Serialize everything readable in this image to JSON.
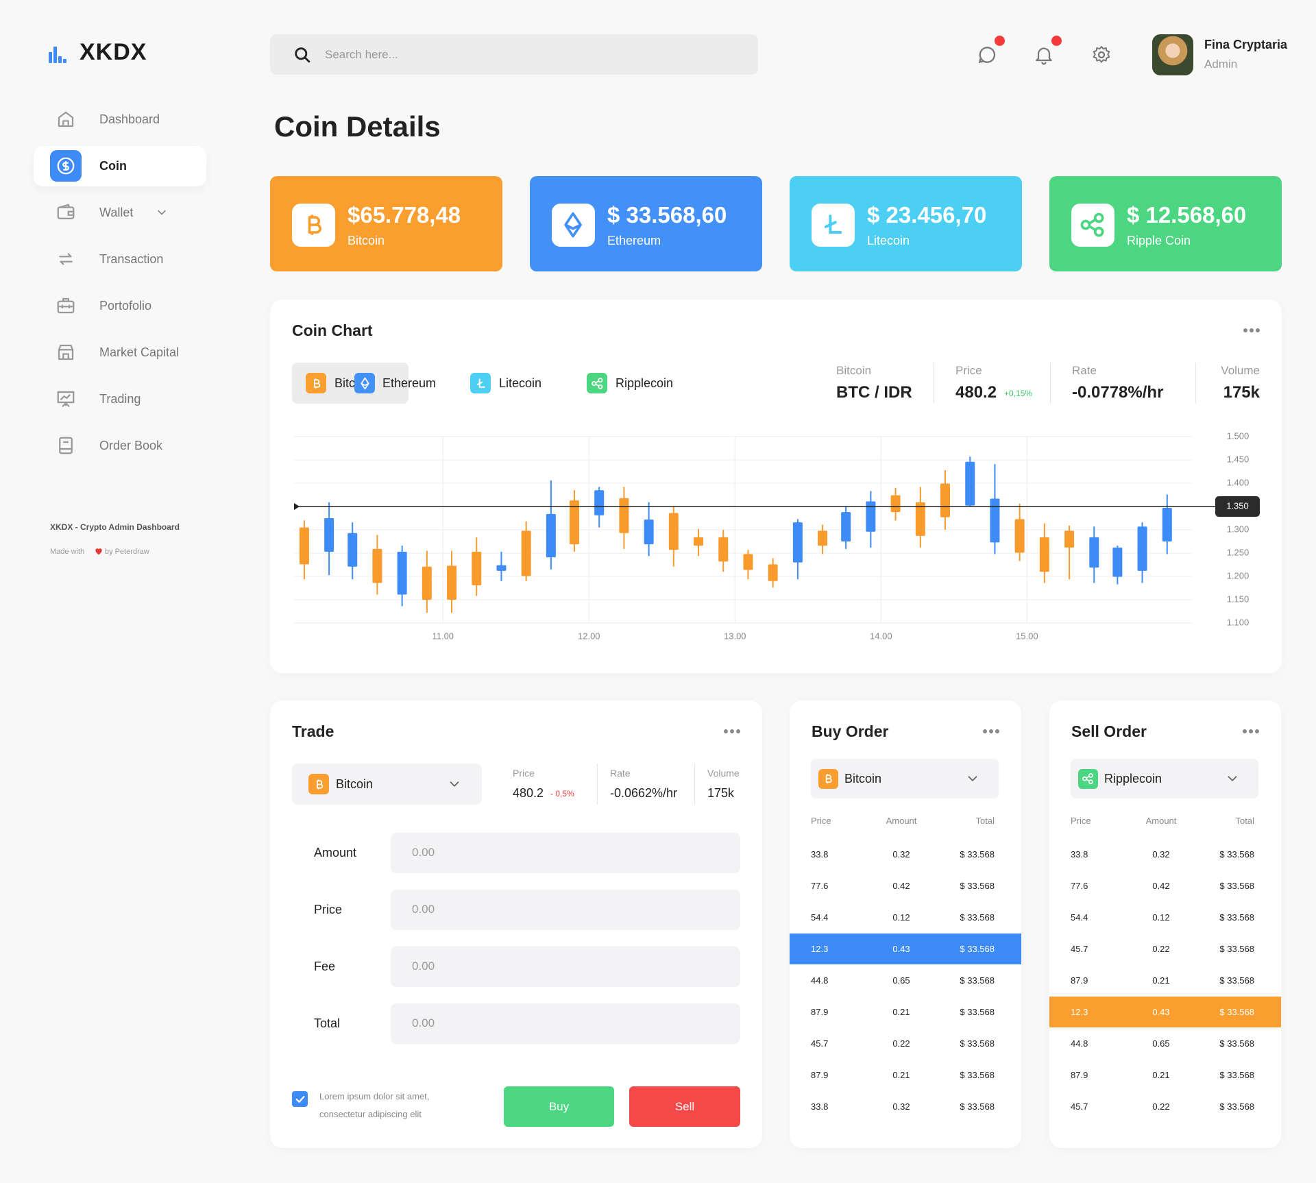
{
  "sidebar": {
    "logo": "XKDX",
    "menu": [
      "Dashboard",
      "Coin",
      "Wallet",
      "Transaction",
      "Portofolio",
      "Market Capital",
      "Trading",
      "Order Book"
    ],
    "active": 1,
    "footer_title": "XKDX - Crypto Admin Dashboard",
    "footer_made": "Made with",
    "footer_by": "by Peterdraw"
  },
  "header": {
    "search_placeholder": "Search here...",
    "user_name": "Fina Cryptaria",
    "user_role": "Admin"
  },
  "page_title": "Coin Details",
  "coin_cards": [
    {
      "price": "$65.778,48",
      "name": "Bitcoin",
      "color": "#f99e2f"
    },
    {
      "price": "$ 33.568,60",
      "name": "Ethereum",
      "color": "#4391f7"
    },
    {
      "price": "$ 23.456,70",
      "name": "Litecoin",
      "color": "#4ccff3"
    },
    {
      "price": "$ 12.568,60",
      "name": "Ripple Coin",
      "color": "#4cd681"
    }
  ],
  "coin_chart": {
    "title": "Coin Chart",
    "tabs": [
      "Bitcoin",
      "Ethereum",
      "Litecoin",
      "Ripplecoin"
    ],
    "active_tab": 0,
    "stats": [
      {
        "label": "Bitcoin",
        "value": "BTC / IDR"
      },
      {
        "label": "Price",
        "value": "480.2",
        "change": "+0,15%"
      },
      {
        "label": "Rate",
        "value": "-0.0778%/hr"
      },
      {
        "label": "Volume",
        "value": "175k"
      }
    ]
  },
  "chart_data": {
    "type": "candlestick",
    "x": [
      10.05,
      10.22,
      10.38,
      10.55,
      10.72,
      10.89,
      11.06,
      11.23,
      11.4,
      11.57,
      11.74,
      11.9,
      12.07,
      12.24,
      12.41,
      12.58,
      12.75,
      12.92,
      13.09,
      13.26,
      13.43,
      13.6,
      13.76,
      13.93,
      14.1,
      14.27,
      14.44,
      14.61,
      14.78,
      14.95,
      15.12,
      15.29,
      15.46,
      15.62,
      15.79,
      15.96
    ],
    "open": [
      1.305,
      1.253,
      1.221,
      1.259,
      1.161,
      1.221,
      1.223,
      1.253,
      1.212,
      1.298,
      1.241,
      1.363,
      1.331,
      1.368,
      1.269,
      1.336,
      1.284,
      1.284,
      1.248,
      1.226,
      1.23,
      1.298,
      1.275,
      1.296,
      1.374,
      1.359,
      1.399,
      1.352,
      1.273,
      1.323,
      1.284,
      1.298,
      1.219,
      1.199,
      1.212,
      1.275
    ],
    "high": [
      1.32,
      1.359,
      1.316,
      1.289,
      1.266,
      1.255,
      1.255,
      1.284,
      1.253,
      1.318,
      1.406,
      1.385,
      1.392,
      1.392,
      1.359,
      1.35,
      1.302,
      1.3,
      1.257,
      1.239,
      1.323,
      1.311,
      1.35,
      1.383,
      1.39,
      1.392,
      1.428,
      1.457,
      1.441,
      1.356,
      1.314,
      1.309,
      1.307,
      1.266,
      1.316,
      1.376
    ],
    "low": [
      1.194,
      1.203,
      1.194,
      1.161,
      1.136,
      1.122,
      1.122,
      1.158,
      1.19,
      1.19,
      1.215,
      1.253,
      1.305,
      1.259,
      1.244,
      1.221,
      1.244,
      1.21,
      1.194,
      1.176,
      1.194,
      1.248,
      1.259,
      1.262,
      1.32,
      1.262,
      1.3,
      1.35,
      1.248,
      1.233,
      1.186,
      1.194,
      1.186,
      1.183,
      1.186,
      1.248
    ],
    "close": [
      1.226,
      1.325,
      1.293,
      1.186,
      1.253,
      1.15,
      1.15,
      1.181,
      1.224,
      1.201,
      1.334,
      1.269,
      1.385,
      1.293,
      1.322,
      1.257,
      1.266,
      1.232,
      1.214,
      1.19,
      1.316,
      1.266,
      1.338,
      1.361,
      1.338,
      1.287,
      1.327,
      1.446,
      1.367,
      1.251,
      1.21,
      1.262,
      1.284,
      1.262,
      1.307,
      1.347
    ],
    "up_color": "#3d8bf7",
    "down_color": "#f89b2c",
    "xlim": [
      9.98,
      16.13
    ],
    "xticks": [
      {
        "value": 11,
        "label": "11.00"
      },
      {
        "value": 12,
        "label": "12.00"
      },
      {
        "value": 13,
        "label": "13.00"
      },
      {
        "value": 14,
        "label": "14.00"
      },
      {
        "value": 15,
        "label": "15.00"
      }
    ],
    "ylim": [
      1.1,
      1.5
    ],
    "yticks": [
      {
        "value": 1.5,
        "label": "1.500"
      },
      {
        "value": 1.45,
        "label": "1.450"
      },
      {
        "value": 1.4,
        "label": "1.400"
      },
      {
        "value": 1.3,
        "label": "1.300"
      },
      {
        "value": 1.25,
        "label": "1.250"
      },
      {
        "value": 1.2,
        "label": "1.200"
      },
      {
        "value": 1.15,
        "label": "1.150"
      },
      {
        "value": 1.1,
        "label": "1.100"
      }
    ],
    "price_line": {
      "value": 1.35,
      "label": "1.350"
    },
    "grid": true
  },
  "trade": {
    "title": "Trade",
    "coin": "Bitcoin",
    "stats": [
      {
        "label": "Price",
        "value": "480.2",
        "change": "- 0,5%"
      },
      {
        "label": "Rate",
        "value": "-0.0662%/hr"
      },
      {
        "label": "Volume",
        "value": "175k"
      }
    ],
    "fields": [
      {
        "label": "Amount",
        "placeholder": "0.00"
      },
      {
        "label": "Price",
        "placeholder": "0.00"
      },
      {
        "label": "Fee",
        "placeholder": "0.00"
      },
      {
        "label": "Total",
        "placeholder": "0.00"
      }
    ],
    "note": "Lorem ipsum dolor sit amet, consectetur adipiscing elit",
    "buy": "Buy",
    "sell": "Sell"
  },
  "buy_order": {
    "title": "Buy Order",
    "coin": "Bitcoin",
    "columns": [
      "Price",
      "Amount",
      "Total"
    ],
    "rows": [
      [
        "33.8",
        "0.32",
        "$ 33.568"
      ],
      [
        "77.6",
        "0.42",
        "$ 33.568"
      ],
      [
        "54.4",
        "0.12",
        "$ 33.568"
      ],
      [
        "12.3",
        "0.43",
        "$ 33.568"
      ],
      [
        "44.8",
        "0.65",
        "$ 33.568"
      ],
      [
        "87.9",
        "0.21",
        "$ 33.568"
      ],
      [
        "45.7",
        "0.22",
        "$ 33.568"
      ],
      [
        "87.9",
        "0.21",
        "$ 33.568"
      ],
      [
        "33.8",
        "0.32",
        "$ 33.568"
      ]
    ],
    "highlight_row": 3,
    "highlight_color": "#3d8bf7"
  },
  "sell_order": {
    "title": "Sell Order",
    "coin": "Ripplecoin",
    "columns": [
      "Price",
      "Amount",
      "Total"
    ],
    "rows": [
      [
        "33.8",
        "0.32",
        "$ 33.568"
      ],
      [
        "77.6",
        "0.42",
        "$ 33.568"
      ],
      [
        "54.4",
        "0.12",
        "$ 33.568"
      ],
      [
        "45.7",
        "0.22",
        "$ 33.568"
      ],
      [
        "87.9",
        "0.21",
        "$ 33.568"
      ],
      [
        "12.3",
        "0.43",
        "$ 33.568"
      ],
      [
        "44.8",
        "0.65",
        "$ 33.568"
      ],
      [
        "87.9",
        "0.21",
        "$ 33.568"
      ],
      [
        "45.7",
        "0.22",
        "$ 33.568"
      ]
    ],
    "highlight_row": 5,
    "highlight_color": "#f99e2f"
  }
}
